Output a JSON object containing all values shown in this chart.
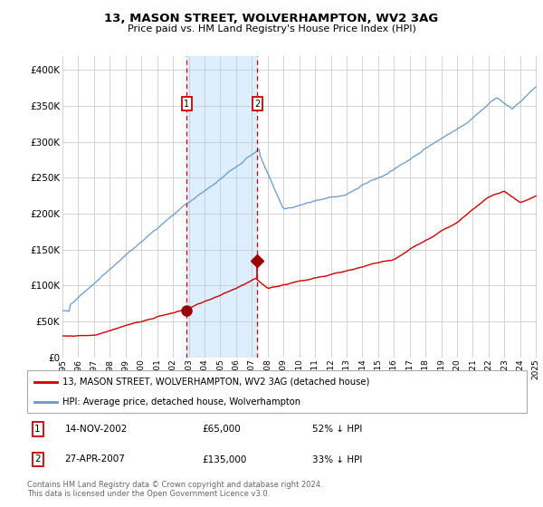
{
  "title": "13, MASON STREET, WOLVERHAMPTON, WV2 3AG",
  "subtitle": "Price paid vs. HM Land Registry's House Price Index (HPI)",
  "legend_line1": "13, MASON STREET, WOLVERHAMPTON, WV2 3AG (detached house)",
  "legend_line2": "HPI: Average price, detached house, Wolverhampton",
  "annotation1_date": "14-NOV-2002",
  "annotation1_price": "£65,000",
  "annotation1_hpi": "52% ↓ HPI",
  "annotation2_date": "27-APR-2007",
  "annotation2_price": "£135,000",
  "annotation2_hpi": "33% ↓ HPI",
  "footer": "Contains HM Land Registry data © Crown copyright and database right 2024.\nThis data is licensed under the Open Government Licence v3.0.",
  "red_color": "#cc0000",
  "blue_color": "#6699cc",
  "shade_color": "#ddeeff",
  "grid_color": "#cccccc",
  "bg_color": "#ffffff",
  "box_color": "#cc0000",
  "purchase1_year": 2002.87,
  "purchase1_value": 65000,
  "purchase2_year": 2007.33,
  "purchase2_value": 135000,
  "ylim_max": 420000,
  "year_start": 1995,
  "year_end": 2025
}
